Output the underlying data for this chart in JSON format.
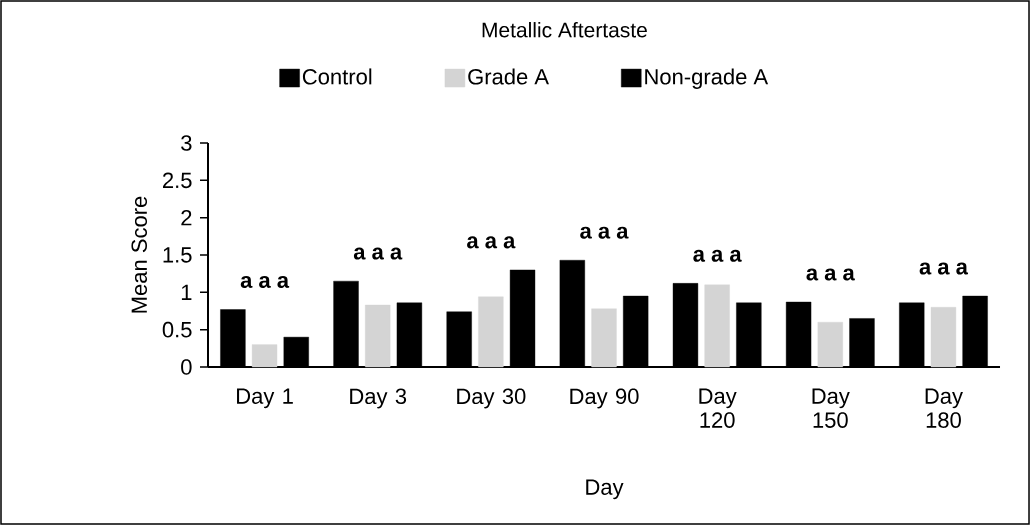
{
  "chart_data": {
    "type": "bar",
    "title": "Metallic Aftertaste",
    "xlabel": "Day",
    "ylabel": "Mean Score",
    "categories": [
      "Day 1",
      "Day 3",
      "Day 30",
      "Day 90",
      "Day 120",
      "Day 150",
      "Day 180"
    ],
    "series": [
      {
        "name": "Control",
        "color": "#000000",
        "values": [
          0.77,
          1.15,
          0.74,
          1.43,
          1.12,
          0.87,
          0.86
        ]
      },
      {
        "name": "Grade A",
        "color": "#d4d4d4",
        "values": [
          0.3,
          0.83,
          0.94,
          0.78,
          1.1,
          0.6,
          0.8
        ]
      },
      {
        "name": "Non-grade A",
        "color": "#000000",
        "values": [
          0.4,
          0.86,
          1.3,
          0.95,
          0.86,
          0.65,
          0.95
        ]
      }
    ],
    "ylim": [
      0,
      3
    ],
    "yticks": [
      0,
      0.5,
      1,
      1.5,
      2,
      2.5,
      3
    ],
    "grid": false,
    "legend": "top",
    "annotations": [
      "a a a",
      "a a a",
      "a a a",
      "a a a",
      "a a a",
      "a a a",
      "a a a"
    ]
  }
}
